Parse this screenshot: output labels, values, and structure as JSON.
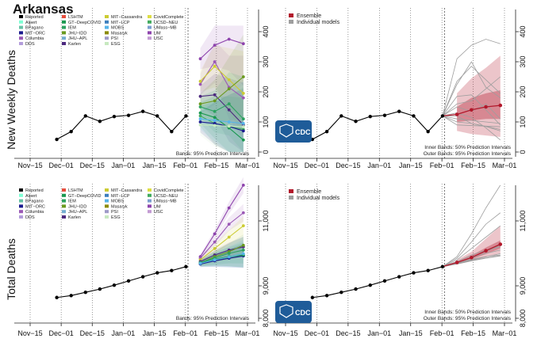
{
  "title": "Arkansas",
  "colors": {
    "reported": "#000000",
    "ensemble": "#b2182b",
    "individual": "#9e9e9e",
    "cdc_blue": "#1f5c99"
  },
  "cdc_logo_text": "CDC",
  "legend_models": [
    {
      "name": "Reported",
      "color": "#000000"
    },
    {
      "name": "Alpert",
      "color": "#7fffd4"
    },
    {
      "name": "BPagano",
      "color": "#66c2a5"
    },
    {
      "name": "MIT−ORC",
      "color": "#1b1b8f"
    },
    {
      "name": "Columbia",
      "color": "#9b59b6"
    },
    {
      "name": "DDS",
      "color": "#b39ddb"
    },
    {
      "name": "LSHTM",
      "color": "#e74c3c"
    },
    {
      "name": "GT−DeepCOVID",
      "color": "#1a9850"
    },
    {
      "name": "IEM",
      "color": "#2ca25f"
    },
    {
      "name": "JHU−IDD",
      "color": "#6a9a1f"
    },
    {
      "name": "JHU−APL",
      "color": "#74add1"
    },
    {
      "name": "Karlen",
      "color": "#4d2a7f"
    },
    {
      "name": "MIT−Cassandra",
      "color": "#cccc33"
    },
    {
      "name": "MIT−LCP",
      "color": "#3d7fbd"
    },
    {
      "name": "MOBS",
      "color": "#56b4e9"
    },
    {
      "name": "Masaryk",
      "color": "#8b8b00"
    },
    {
      "name": "PSI",
      "color": "#9e9ac8"
    },
    {
      "name": "ESG",
      "color": "#c7e9c0"
    },
    {
      "name": "CovidComplete",
      "color": "#dddd44"
    },
    {
      "name": "UCSD−NEU",
      "color": "#41ab5d"
    },
    {
      "name": "UMass−MB",
      "color": "#7b9fcf"
    },
    {
      "name": "UM",
      "color": "#8e44ad"
    },
    {
      "name": "USC",
      "color": "#c39bd3"
    }
  ],
  "legend_ensemble": [
    {
      "name": "Ensemble",
      "color": "#b2182b"
    },
    {
      "name": "Individual models",
      "color": "#9e9e9e"
    }
  ],
  "chart_data": [
    {
      "type": "line",
      "panel": "top-left",
      "ylabel": "New Weekly Deaths",
      "y_axis_side": "right",
      "ylim": [
        0,
        400
      ],
      "yticks": [
        "0",
        "100",
        "200",
        "300",
        "400"
      ],
      "xlim": [
        "2020-11-15",
        "2021-03-01"
      ],
      "xticks": [
        "Nov−15",
        "Dec−01",
        "Dec−15",
        "Jan−01",
        "Jan−15",
        "Feb−01",
        "Feb−15",
        "Mar−01"
      ],
      "note": "Bands: 95% Prediction Intervals",
      "reported": {
        "x": [
          "2020-11-28",
          "2020-12-05",
          "2020-12-12",
          "2020-12-19",
          "2020-12-26",
          "2021-01-02",
          "2021-01-09",
          "2021-01-16",
          "2021-01-23",
          "2021-01-30"
        ],
        "y": [
          42,
          68,
          120,
          102,
          118,
          122,
          135,
          120,
          68,
          120
        ]
      },
      "forecast_x": [
        "2021-02-06",
        "2021-02-13",
        "2021-02-20",
        "2021-02-27"
      ],
      "series": [
        {
          "name": "UM",
          "y": [
            310,
            355,
            375,
            360
          ]
        },
        {
          "name": "Columbia",
          "y": [
            225,
            300,
            215,
            180
          ]
        },
        {
          "name": "MIT−Cassandra",
          "y": [
            235,
            285,
            240,
            195
          ]
        },
        {
          "name": "Karlen",
          "y": [
            185,
            190,
            140,
            90
          ]
        },
        {
          "name": "JHU−IDD",
          "y": [
            160,
            170,
            210,
            250
          ]
        },
        {
          "name": "UCSD−NEU",
          "y": [
            120,
            95,
            85,
            75
          ]
        },
        {
          "name": "MIT−ORC",
          "y": [
            100,
            95,
            85,
            70
          ]
        },
        {
          "name": "GT−DeepCOVID",
          "y": [
            130,
            115,
            80,
            40
          ]
        },
        {
          "name": "IEM",
          "y": [
            150,
            135,
            160,
            110
          ]
        },
        {
          "name": "MOBS",
          "y": [
            110,
            105,
            100,
            95
          ]
        },
        {
          "name": "ESG",
          "y": [
            90,
            88,
            86,
            84
          ]
        }
      ]
    },
    {
      "type": "line",
      "panel": "top-right",
      "y_axis_side": "right",
      "ylim": [
        0,
        400
      ],
      "yticks": [
        "0",
        "100",
        "200",
        "300",
        "400"
      ],
      "xlim": [
        "2020-11-15",
        "2021-03-01"
      ],
      "xticks": [
        "Nov−15",
        "Dec−01",
        "Dec−15",
        "Jan−01",
        "Jan−15",
        "Feb−01",
        "Feb−15",
        "Mar−01"
      ],
      "note_inner": "Inner Bands: 50% Prediction Intervals",
      "note_outer": "Outer Bands: 95% Prediction Intervals",
      "reported": {
        "x": [
          "2020-11-28",
          "2020-12-05",
          "2020-12-12",
          "2020-12-19",
          "2020-12-26",
          "2021-01-02",
          "2021-01-09",
          "2021-01-16",
          "2021-01-23",
          "2021-01-30"
        ],
        "y": [
          42,
          68,
          120,
          102,
          118,
          122,
          135,
          120,
          68,
          120
        ]
      },
      "forecast_x": [
        "2021-02-06",
        "2021-02-13",
        "2021-02-20",
        "2021-02-27"
      ],
      "ensemble": {
        "y": [
          125,
          140,
          150,
          155
        ],
        "q50": [
          [
            100,
            150
          ],
          [
            105,
            180
          ],
          [
            110,
            195
          ],
          [
            110,
            205
          ]
        ],
        "q95": [
          [
            70,
            195
          ],
          [
            60,
            245
          ],
          [
            55,
            280
          ],
          [
            50,
            320
          ]
        ]
      },
      "individual": [
        [
          310,
          355,
          375,
          360
        ],
        [
          225,
          300,
          215,
          180
        ],
        [
          235,
          285,
          240,
          195
        ],
        [
          185,
          190,
          140,
          90
        ],
        [
          160,
          170,
          210,
          250
        ],
        [
          120,
          95,
          85,
          75
        ],
        [
          100,
          95,
          85,
          70
        ],
        [
          130,
          115,
          80,
          40
        ],
        [
          150,
          135,
          160,
          110
        ],
        [
          110,
          105,
          100,
          95
        ],
        [
          90,
          88,
          86,
          84
        ]
      ]
    },
    {
      "type": "line",
      "panel": "bottom-left",
      "ylabel": "Total Deaths",
      "y_axis_side": "right",
      "ylim": [
        8000,
        12000
      ],
      "yticks": [
        "8,000",
        "9,000",
        "11,000"
      ],
      "ytick_values": [
        8000,
        9000,
        11000
      ],
      "xlim": [
        "2020-11-15",
        "2021-03-01"
      ],
      "xticks": [
        "Nov−15",
        "Dec−01",
        "Dec−15",
        "Jan−01",
        "Jan−15",
        "Feb−01",
        "Feb−15",
        "Mar−01"
      ],
      "note": "Bands: 95% Prediction Intervals",
      "reported": {
        "x": [
          "2020-11-28",
          "2020-12-05",
          "2020-12-12",
          "2020-12-19",
          "2020-12-26",
          "2021-01-02",
          "2021-01-09",
          "2021-01-16",
          "2021-01-23",
          "2021-01-30"
        ],
        "y": [
          8640,
          8700,
          8800,
          8900,
          9020,
          9150,
          9280,
          9400,
          9470,
          9590
        ]
      },
      "forecast_x": [
        "2021-02-06",
        "2021-02-13",
        "2021-02-20",
        "2021-02-27"
      ],
      "series": [
        {
          "name": "UM",
          "y": [
            9900,
            10600,
            11400,
            12100
          ]
        },
        {
          "name": "Columbia",
          "y": [
            9850,
            10350,
            10900,
            11250
          ]
        },
        {
          "name": "MIT−Cassandra",
          "y": [
            9800,
            10150,
            10500,
            10850
          ]
        },
        {
          "name": "Karlen",
          "y": [
            9750,
            9950,
            10100,
            10200
          ]
        },
        {
          "name": "JHU−IDD",
          "y": [
            9700,
            9900,
            10050,
            10250
          ]
        },
        {
          "name": "UCSD−NEU",
          "y": [
            9680,
            9780,
            9860,
            9930
          ]
        },
        {
          "name": "MIT−ORC",
          "y": [
            9670,
            9770,
            9850,
            9920
          ]
        },
        {
          "name": "GT−DeepCOVID",
          "y": [
            9700,
            9820,
            9900,
            9950
          ]
        },
        {
          "name": "IEM",
          "y": [
            9720,
            9860,
            10000,
            10100
          ]
        },
        {
          "name": "MOBS",
          "y": [
            9690,
            9800,
            9890,
            9990
          ]
        }
      ]
    },
    {
      "type": "line",
      "panel": "bottom-right",
      "y_axis_side": "right",
      "ylim": [
        8000,
        12000
      ],
      "yticks": [
        "8,000",
        "9,000",
        "11,000"
      ],
      "ytick_values": [
        8000,
        9000,
        11000
      ],
      "xlim": [
        "2020-11-15",
        "2021-03-01"
      ],
      "xticks": [
        "Nov−15",
        "Dec−01",
        "Dec−15",
        "Jan−01",
        "Jan−15",
        "Feb−01",
        "Feb−15",
        "Mar−01"
      ],
      "note_inner": "Inner Bands: 50% Prediction Intervals",
      "note_outer": "Outer Bands: 95% Prediction Intervals",
      "reported": {
        "x": [
          "2020-11-28",
          "2020-12-05",
          "2020-12-12",
          "2020-12-19",
          "2020-12-26",
          "2021-01-02",
          "2021-01-09",
          "2021-01-16",
          "2021-01-23",
          "2021-01-30"
        ],
        "y": [
          8640,
          8700,
          8800,
          8900,
          9020,
          9150,
          9280,
          9400,
          9470,
          9590
        ]
      },
      "forecast_x": [
        "2021-02-06",
        "2021-02-13",
        "2021-02-20",
        "2021-02-27"
      ],
      "ensemble": {
        "y": [
          9720,
          9870,
          10080,
          10280
        ],
        "q50": [
          [
            9700,
            9760
          ],
          [
            9820,
            9930
          ],
          [
            9980,
            10180
          ],
          [
            10150,
            10400
          ]
        ],
        "q95": [
          [
            9660,
            9800
          ],
          [
            9760,
            10050
          ],
          [
            9880,
            10450
          ],
          [
            9980,
            10850
          ]
        ]
      },
      "individual": [
        [
          9900,
          10600,
          11400,
          12100
        ],
        [
          9850,
          10350,
          10900,
          11250
        ],
        [
          9800,
          10150,
          10500,
          10850
        ],
        [
          9750,
          9950,
          10100,
          10200
        ],
        [
          9700,
          9900,
          10050,
          10250
        ],
        [
          9680,
          9780,
          9860,
          9930
        ],
        [
          9670,
          9770,
          9850,
          9920
        ],
        [
          9700,
          9820,
          9900,
          9950
        ],
        [
          9720,
          9860,
          10000,
          10100
        ],
        [
          9690,
          9800,
          9890,
          9990
        ]
      ]
    }
  ]
}
